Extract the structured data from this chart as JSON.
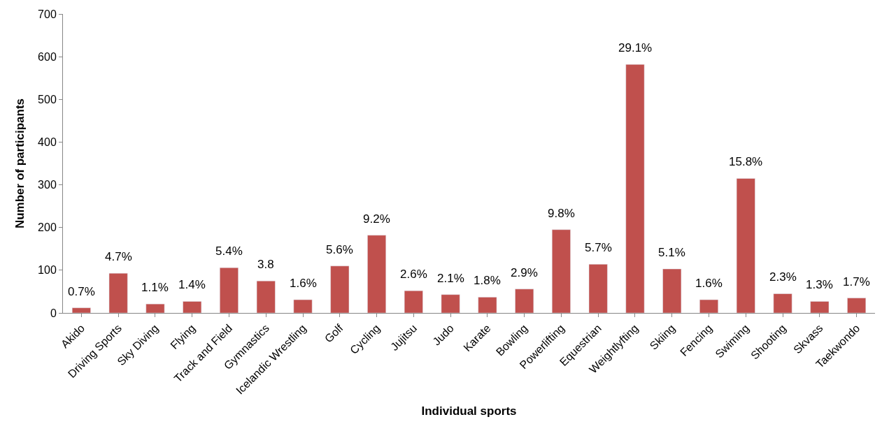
{
  "chart_data": {
    "type": "bar",
    "xlabel": "Individual sports",
    "ylabel": "Number of participants",
    "categories": [
      "Akido",
      "Driving Sports",
      "Sky Diving",
      "Flying",
      "Track and Field",
      "Gymnastics",
      "Icelandic Wrestling",
      "Golf",
      "Cycling",
      "Jujitsu",
      "Judo",
      "Karate",
      "Bowling",
      "Powerlifting",
      "Equestrian",
      "Weightlyfting",
      "Skiing",
      "Fencing",
      "Swiming",
      "Shooting",
      "Skvass",
      "Taekwondo"
    ],
    "series": [
      {
        "color": "#c0504d",
        "values": [
          12,
          93,
          21,
          27,
          106,
          75,
          31,
          110,
          182,
          52,
          43,
          37,
          56,
          195,
          114,
          582,
          103,
          31,
          315,
          45,
          27,
          35
        ]
      }
    ],
    "annotations": [
      {
        "text": "0.7%",
        "x": "Akido",
        "y": 12
      },
      {
        "text": "4.7%",
        "x": "Driving Sports",
        "y": 93
      },
      {
        "text": "1.1%",
        "x": "Sky Diving",
        "y": 21
      },
      {
        "text": "1.4%",
        "x": "Flying",
        "y": 27
      },
      {
        "text": "5.4%",
        "x": "Track and Field",
        "y": 106
      },
      {
        "text": "3.8",
        "x": "Gymnastics",
        "y": 75
      },
      {
        "text": "1.6%",
        "x": "Icelandic Wrestling",
        "y": 31
      },
      {
        "text": "5.6%",
        "x": "Golf",
        "y": 110
      },
      {
        "text": "9.2%",
        "x": "Cycling",
        "y": 182
      },
      {
        "text": "2.6%",
        "x": "Jujitsu",
        "y": 52
      },
      {
        "text": "2.1%",
        "x": "Judo",
        "y": 43
      },
      {
        "text": "1.8%",
        "x": "Karate",
        "y": 37
      },
      {
        "text": "2.9%",
        "x": "Bowling",
        "y": 56
      },
      {
        "text": "9.8%",
        "x": "Powerlifting",
        "y": 195
      },
      {
        "text": "5.7%",
        "x": "Equestrian",
        "y": 114
      },
      {
        "text": "29.1%",
        "x": "Weightlyfting",
        "y": 582
      },
      {
        "text": "5.1%",
        "x": "Skiing",
        "y": 103
      },
      {
        "text": "1.6%",
        "x": "Fencing",
        "y": 31
      },
      {
        "text": "15.8%",
        "x": "Swiming",
        "y": 315
      },
      {
        "text": "2.3%",
        "x": "Shooting",
        "y": 45
      },
      {
        "text": "1.3%",
        "x": "Skvass",
        "y": 27
      },
      {
        "text": "1.7%",
        "x": "Taekwondo",
        "y": 35
      }
    ],
    "ylim": [
      0,
      700
    ],
    "yticks": [
      0,
      100,
      200,
      300,
      400,
      500,
      600,
      700
    ],
    "legend": false
  }
}
